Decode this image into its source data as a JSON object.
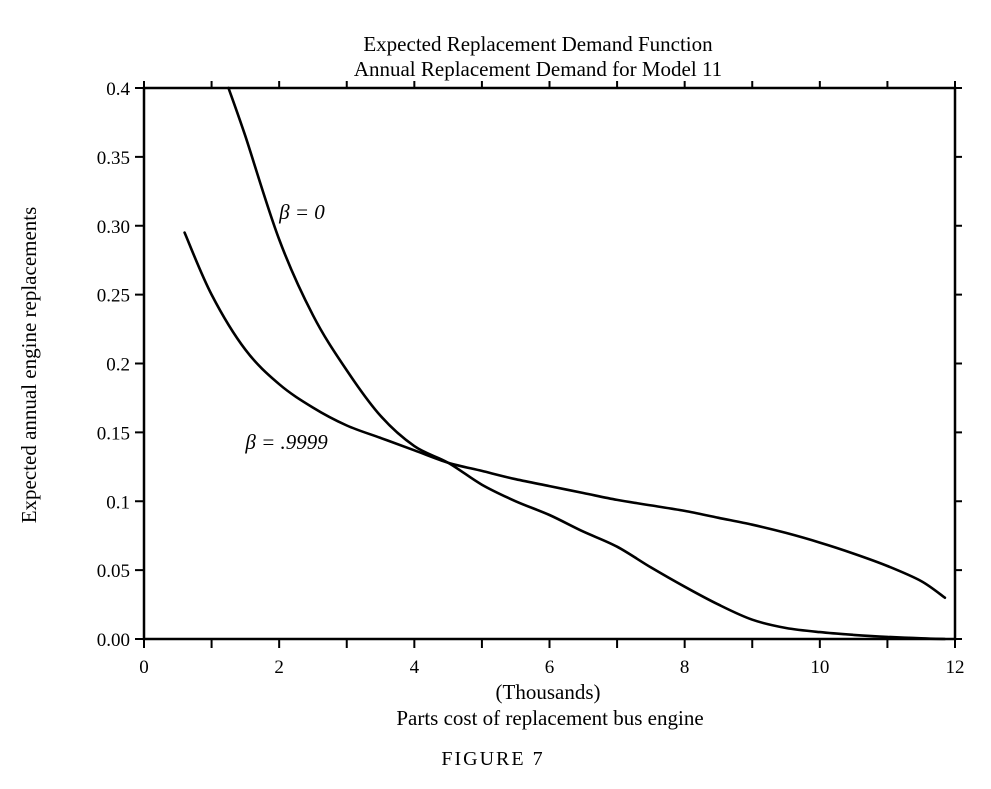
{
  "chart_data": {
    "type": "line",
    "title": "Expected Replacement Demand Function",
    "subtitle": "Annual Replacement Demand for Model 11",
    "xlabel_units": "(Thousands)",
    "xlabel": "Parts cost of replacement bus engine",
    "ylabel": "Expected annual engine replacements",
    "caption": "FIGURE 7",
    "xlim": [
      0,
      12
    ],
    "ylim": [
      0,
      0.4
    ],
    "x_ticks": [
      "0",
      "2",
      "4",
      "6",
      "8",
      "10",
      "12"
    ],
    "y_ticks": [
      "0.00",
      "0.05",
      "0.1",
      "0.15",
      "0.2",
      "0.25",
      "0.30",
      "0.35",
      "0.4"
    ],
    "grid": false,
    "series": [
      {
        "name": "β = 0",
        "x": [
          1.25,
          1.5,
          2.0,
          2.5,
          3.0,
          3.5,
          4.0,
          4.5,
          5.0,
          5.5,
          6.0,
          6.5,
          7.0,
          7.5,
          8.0,
          8.5,
          9.0,
          9.5,
          10.0,
          10.5,
          11.0,
          11.5,
          11.85
        ],
        "y": [
          0.4,
          0.365,
          0.29,
          0.235,
          0.195,
          0.162,
          0.14,
          0.128,
          0.112,
          0.1,
          0.09,
          0.078,
          0.067,
          0.052,
          0.038,
          0.025,
          0.014,
          0.008,
          0.005,
          0.003,
          0.0015,
          0.0005,
          0.0
        ]
      },
      {
        "name": "β = .9999",
        "x": [
          0.6,
          1.0,
          1.5,
          2.0,
          2.5,
          3.0,
          3.5,
          4.0,
          4.5,
          5.0,
          5.5,
          6.0,
          6.5,
          7.0,
          7.5,
          8.0,
          8.5,
          9.0,
          9.5,
          10.0,
          10.5,
          11.0,
          11.5,
          11.85
        ],
        "y": [
          0.295,
          0.25,
          0.21,
          0.185,
          0.168,
          0.155,
          0.146,
          0.137,
          0.128,
          0.122,
          0.116,
          0.111,
          0.106,
          0.101,
          0.097,
          0.093,
          0.088,
          0.083,
          0.077,
          0.07,
          0.062,
          0.053,
          0.042,
          0.03
        ]
      }
    ],
    "annotations": [
      {
        "text": "β = 0",
        "x": 2.0,
        "y": 0.31
      },
      {
        "text": "β = .9999",
        "x": 1.5,
        "y": 0.143
      }
    ]
  }
}
